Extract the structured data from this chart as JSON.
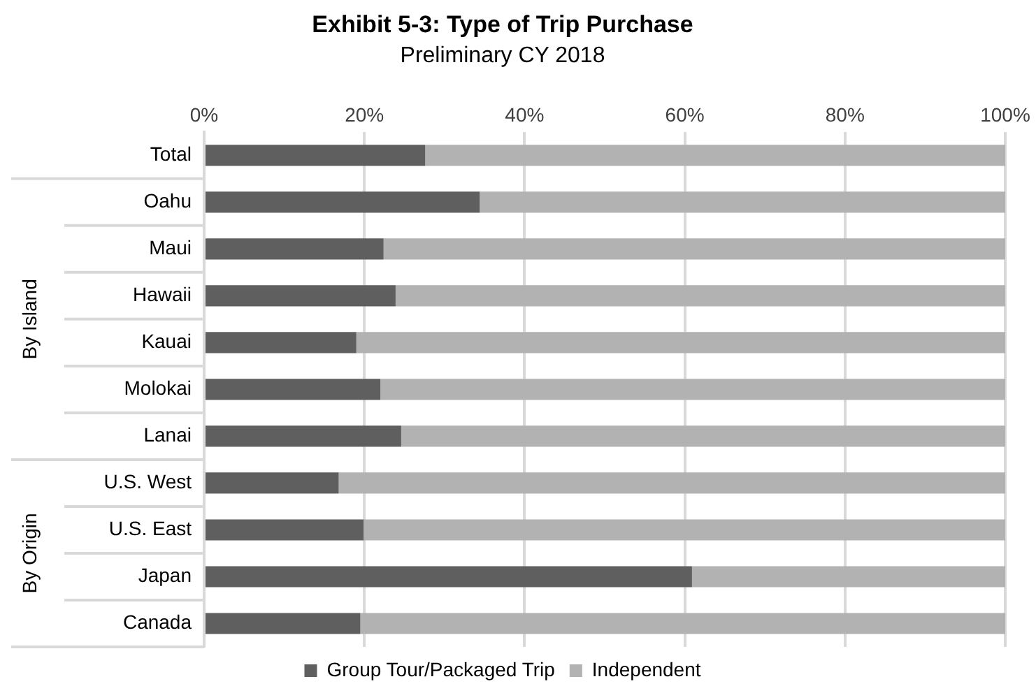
{
  "chart_data": {
    "type": "bar",
    "title": "Exhibit 5-3: Type of Trip Purchase",
    "subtitle": "Preliminary CY 2018",
    "orientation": "horizontal",
    "stacked": true,
    "categories": [
      "Total",
      "Oahu",
      "Maui",
      "Hawaii",
      "Kauai",
      "Molokai",
      "Lanai",
      "U.S. West",
      "U.S. East",
      "Japan",
      "Canada"
    ],
    "series": [
      {
        "name": "Group Tour/Packaged Trip",
        "color": "#5f5f5f",
        "values": [
          27.6,
          34.4,
          22.4,
          23.9,
          19.0,
          22.0,
          24.6,
          16.8,
          19.9,
          60.9,
          19.5
        ]
      },
      {
        "name": "Independent",
        "color": "#b2b2b2",
        "values": [
          72.4,
          65.6,
          77.6,
          76.1,
          81.0,
          78.0,
          75.4,
          83.2,
          80.1,
          39.1,
          80.5
        ]
      }
    ],
    "xlim": [
      0,
      100
    ],
    "xticks": [
      {
        "value": 0,
        "label": "0%"
      },
      {
        "value": 20,
        "label": "20%"
      },
      {
        "value": 40,
        "label": "40%"
      },
      {
        "value": 60,
        "label": "60%"
      },
      {
        "value": 80,
        "label": "80%"
      },
      {
        "value": 100,
        "label": "100%"
      }
    ],
    "annotations": [
      "By Island",
      "By Origin"
    ],
    "grid": "x",
    "legend": "bottom"
  }
}
